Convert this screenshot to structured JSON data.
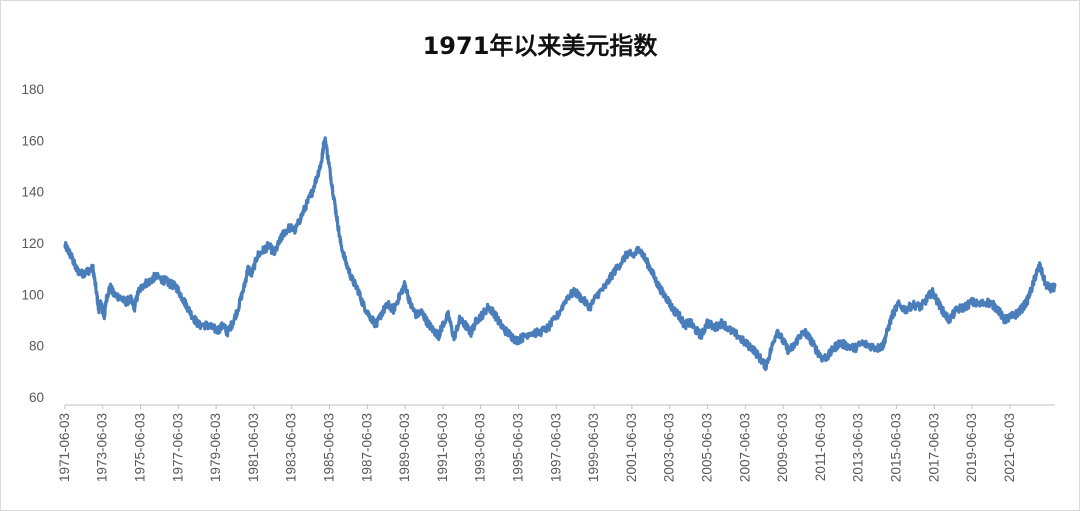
{
  "chart_data": {
    "type": "line",
    "title": "1971年以来美元指数",
    "xlabel": "",
    "ylabel": "",
    "ylim": [
      60,
      180
    ],
    "yticks": [
      60,
      80,
      100,
      120,
      140,
      160,
      180
    ],
    "xticks": [
      "1971-06-03",
      "1973-06-03",
      "1975-06-03",
      "1977-06-03",
      "1979-06-03",
      "1981-06-03",
      "1983-06-03",
      "1985-06-03",
      "1987-06-03",
      "1989-06-03",
      "1991-06-03",
      "1993-06-03",
      "1995-06-03",
      "1997-06-03",
      "1999-06-03",
      "2001-06-03",
      "2003-06-03",
      "2005-06-03",
      "2007-06-03",
      "2009-06-03",
      "2011-06-03",
      "2013-06-03",
      "2015-06-03",
      "2017-06-03",
      "2019-06-03",
      "2021-06-03"
    ],
    "xlim": [
      1971.42,
      2023.8
    ],
    "grid": false,
    "legend": "none",
    "color": "#4a7ebb",
    "series": [
      {
        "x": [
          1971.42,
          1971.6,
          1971.8,
          1972.0,
          1972.3,
          1972.6,
          1972.9,
          1973.1,
          1973.2,
          1973.3,
          1973.5,
          1973.6,
          1973.8,
          1974.0,
          1974.3,
          1974.6,
          1974.9,
          1975.1,
          1975.3,
          1975.6,
          1975.9,
          1976.2,
          1976.5,
          1976.8,
          1977.0,
          1977.3,
          1977.6,
          1977.9,
          1978.2,
          1978.5,
          1978.9,
          1979.2,
          1979.5,
          1979.8,
          1980.0,
          1980.3,
          1980.6,
          1980.9,
          1981.1,
          1981.3,
          1981.6,
          1981.9,
          1982.2,
          1982.5,
          1982.8,
          1983.0,
          1983.3,
          1983.6,
          1983.9,
          1984.2,
          1984.5,
          1984.8,
          1985.0,
          1985.1,
          1985.2,
          1985.4,
          1985.6,
          1985.8,
          1986.0,
          1986.3,
          1986.6,
          1986.9,
          1987.2,
          1987.5,
          1987.9,
          1988.2,
          1988.5,
          1988.8,
          1989.1,
          1989.4,
          1989.7,
          1990.0,
          1990.3,
          1990.6,
          1990.9,
          1991.2,
          1991.4,
          1991.7,
          1992.0,
          1992.3,
          1992.6,
          1992.9,
          1993.2,
          1993.5,
          1993.8,
          1994.1,
          1994.4,
          1994.7,
          1995.0,
          1995.3,
          1995.6,
          1996.0,
          1996.5,
          1997.0,
          1997.5,
          1998.0,
          1998.4,
          1998.8,
          1999.2,
          1999.6,
          2000.0,
          2000.4,
          2000.8,
          2001.2,
          2001.5,
          2001.8,
          2002.1,
          2002.4,
          2002.7,
          2003.0,
          2003.3,
          2003.6,
          2003.9,
          2004.2,
          2004.5,
          2004.8,
          2005.1,
          2005.4,
          2005.8,
          2006.2,
          2006.6,
          2007.0,
          2007.4,
          2007.8,
          2008.2,
          2008.5,
          2008.8,
          2009.1,
          2009.4,
          2009.7,
          2010.0,
          2010.3,
          2010.6,
          2010.9,
          2011.2,
          2011.5,
          2011.8,
          2012.1,
          2012.4,
          2012.8,
          2013.2,
          2013.6,
          2014.0,
          2014.4,
          2014.7,
          2014.9,
          2015.2,
          2015.5,
          2015.9,
          2016.3,
          2016.7,
          2017.0,
          2017.3,
          2017.6,
          2017.9,
          2018.2,
          2018.6,
          2019.0,
          2019.4,
          2019.8,
          2020.2,
          2020.5,
          2020.8,
          2021.1,
          2021.4,
          2021.7,
          2022.0,
          2022.3,
          2022.6,
          2022.8,
          2023.0,
          2023.3,
          2023.6,
          2023.8
        ],
        "values": [
          119,
          117,
          114,
          110,
          108,
          109,
          110,
          100,
          94,
          97,
          91,
          98,
          103,
          100,
          99,
          97,
          98,
          95,
          101,
          104,
          105,
          107,
          106,
          105,
          104,
          103,
          99,
          95,
          91,
          88,
          88,
          87,
          86,
          88,
          85,
          89,
          95,
          103,
          110,
          108,
          115,
          117,
          119,
          116,
          121,
          124,
          126,
          125,
          130,
          135,
          140,
          147,
          152,
          158,
          160,
          150,
          140,
          130,
          120,
          112,
          106,
          102,
          96,
          92,
          88,
          93,
          96,
          94,
          99,
          104,
          96,
          92,
          93,
          89,
          86,
          84,
          88,
          92,
          83,
          90,
          88,
          85,
          90,
          92,
          95,
          93,
          89,
          86,
          84,
          82,
          83,
          85,
          85,
          87,
          92,
          99,
          101,
          98,
          95,
          100,
          103,
          108,
          112,
          116,
          115,
          118,
          114,
          110,
          105,
          101,
          98,
          94,
          92,
          88,
          89,
          86,
          84,
          89,
          87,
          89,
          86,
          84,
          81,
          79,
          75,
          72,
          79,
          86,
          82,
          78,
          80,
          84,
          85,
          82,
          78,
          75,
          76,
          79,
          81,
          80,
          79,
          81,
          80,
          79,
          80,
          85,
          92,
          96,
          94,
          96,
          95,
          98,
          101,
          97,
          93,
          90,
          94,
          95,
          97,
          96,
          97,
          96,
          94,
          90,
          91,
          92,
          94,
          97,
          103,
          108,
          111,
          104,
          102,
          103
        ],
        "name": ""
      }
    ]
  }
}
